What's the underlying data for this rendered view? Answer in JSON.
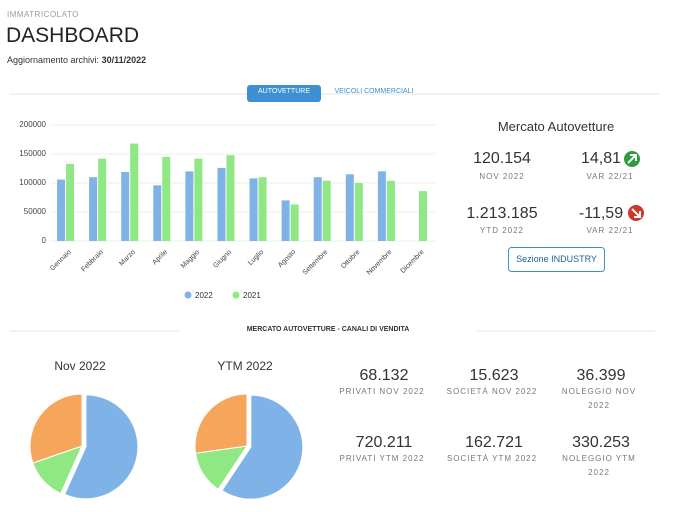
{
  "header": {
    "category": "IMMATRICOLATO",
    "title": "DASHBOARD",
    "update_label": "Aggiornamento archivi:",
    "update_date": "30/11/2022"
  },
  "tabs": [
    "AUTOVETTURE",
    "VEICOLI COMMERCIALI"
  ],
  "market": {
    "title": "Mercato Autovetture",
    "kpis": [
      {
        "value": "120.154",
        "label": "NOV 2022"
      },
      {
        "value": "14,81",
        "label": "VAR 22/21"
      },
      {
        "value": "1.213.185",
        "label": "YTD 2022"
      },
      {
        "value": "-11,59",
        "label": "VAR 22/21"
      }
    ],
    "button": "Sezione INDUSTRY"
  },
  "section_title": "MERCATO AUTOVETTURE - CANALI DI VENDITA",
  "channels": [
    {
      "value": "68.132",
      "label": "PRIVATI NOV 2022"
    },
    {
      "value": "15.623",
      "label": "SOCIETÀ NOV 2022"
    },
    {
      "value": "36.399",
      "label": "NOLEGGIO NOV 2022"
    },
    {
      "value": "720.211",
      "label": "PRIVATI YTM 2022"
    },
    {
      "value": "162.721",
      "label": "SOCIETÀ YTM 2022"
    },
    {
      "value": "330.253",
      "label": "NOLEGGIO YTM 2022"
    }
  ],
  "chart_data": [
    {
      "type": "bar",
      "categories": [
        "Gennaio",
        "Febbraio",
        "Marzo",
        "Aprile",
        "Maggio",
        "Giugno",
        "Luglio",
        "Agosto",
        "Settembre",
        "Ottobre",
        "Novembre",
        "Dicembre"
      ],
      "series": [
        {
          "name": "2022",
          "color": "#7fb3e8",
          "values": [
            106000,
            110000,
            119000,
            96000,
            120000,
            126000,
            108000,
            70000,
            110000,
            115000,
            120154,
            null
          ]
        },
        {
          "name": "2021",
          "color": "#8fe883",
          "values": [
            133000,
            142000,
            168000,
            145000,
            142000,
            148000,
            110000,
            63000,
            104000,
            100000,
            104000,
            86000
          ]
        }
      ],
      "ylim": [
        0,
        200000
      ],
      "yticks": [
        0,
        50000,
        100000,
        150000,
        200000
      ],
      "grid": true
    },
    {
      "type": "pie",
      "title": "Nov 2022",
      "values": [
        68132,
        15623,
        36399
      ],
      "colors": [
        "#7fb3e8",
        "#8fe883",
        "#f5a65b"
      ]
    },
    {
      "type": "pie",
      "title": "YTM 2022",
      "values": [
        720211,
        162721,
        330253
      ],
      "colors": [
        "#7fb3e8",
        "#8fe883",
        "#f5a65b"
      ]
    }
  ]
}
